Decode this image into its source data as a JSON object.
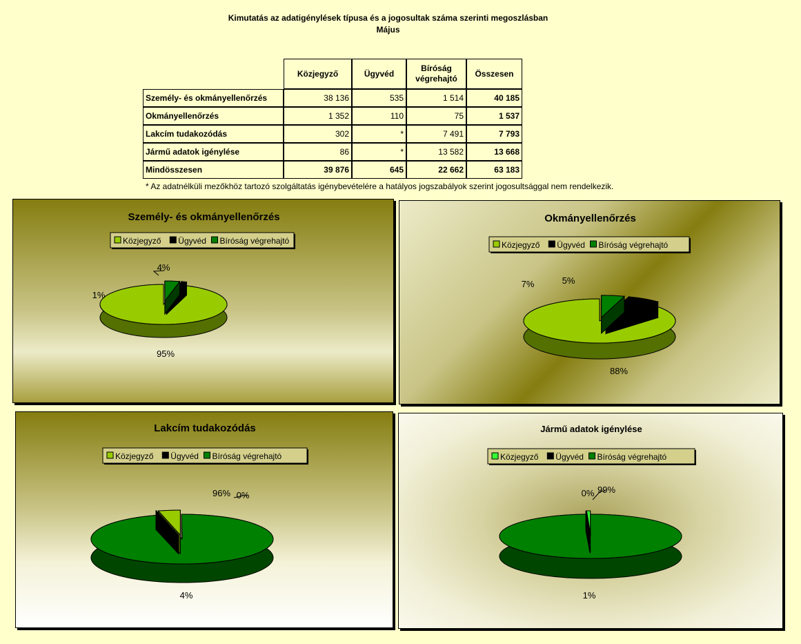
{
  "header": {
    "title": "Kimutatás az adatigénylések típusa és a jogosultak száma szerinti megoszlásban",
    "subtitle": "Május"
  },
  "table": {
    "columns": [
      "Közjegyző",
      "Ügyvéd",
      "Bíróság\nvégrehajtó",
      "Összesen"
    ],
    "rows": [
      {
        "label": "Személy- és okmányellenőrzés",
        "kozjegyzo": "38 136",
        "ugyved": "535",
        "birosag": "1 514",
        "total": "40 185"
      },
      {
        "label": "Okmányellenőrzés",
        "kozjegyzo": "1 352",
        "ugyved": "110",
        "birosag": "75",
        "total": "1 537"
      },
      {
        "label": "Lakcím tudakozódás",
        "kozjegyzo": "302",
        "ugyved": "*",
        "birosag": "7 491",
        "total": "7 793"
      },
      {
        "label": "Jármű adatok igénylése",
        "kozjegyzo": "86",
        "ugyved": "*",
        "birosag": "13 582",
        "total": "13 668"
      }
    ],
    "total_row": {
      "label": "Mindösszesen",
      "kozjegyzo": "39 876",
      "ugyved": "645",
      "birosag": "22 662",
      "total": "63 183"
    }
  },
  "footnote": "* Az adatnélküli mezőkhöz tartozó szolgáltatás igénybevételére a hatályos jogszabályok szerint jogosultsággal nem rendelkezik.",
  "colors": {
    "kozjegyzo": "#99CC00",
    "ugyved": "#000000",
    "birosag": "#008000",
    "kozjegyzo_bright": "#33FF33"
  },
  "chart_data": [
    {
      "type": "pie",
      "title": "Személy- és okmányellenőrzés",
      "legend": [
        "Közjegyző",
        "Ügyvéd",
        "Bíróság végrehajtó"
      ],
      "values": [
        38136,
        535,
        1514
      ],
      "labels": [
        "95%",
        "1%",
        "4%"
      ],
      "exploded": [
        1,
        2
      ]
    },
    {
      "type": "pie",
      "title": "Okmányellenőrzés",
      "legend": [
        "Közjegyző",
        "Ügyvéd",
        "Bíróság végrehajtó"
      ],
      "values": [
        1352,
        110,
        75
      ],
      "labels": [
        "88%",
        "7%",
        "5%"
      ],
      "exploded": [
        1,
        2
      ]
    },
    {
      "type": "pie",
      "title": "Lakcím tudakozódás",
      "legend": [
        "Közjegyző",
        "Ügyvéd",
        "Bíróság végrehajtó"
      ],
      "values": [
        302,
        0,
        7491
      ],
      "labels": [
        "4%",
        "0%",
        "96%"
      ],
      "exploded": [
        0,
        1
      ]
    },
    {
      "type": "pie",
      "title": "Jármű adatok igénylése",
      "legend": [
        "Közjegyző",
        "Ügyvéd",
        "Bíróság végrehajtó"
      ],
      "values": [
        86,
        0,
        13582
      ],
      "labels": [
        "1%",
        "0%",
        "99%"
      ],
      "exploded": [
        0,
        1
      ]
    }
  ]
}
